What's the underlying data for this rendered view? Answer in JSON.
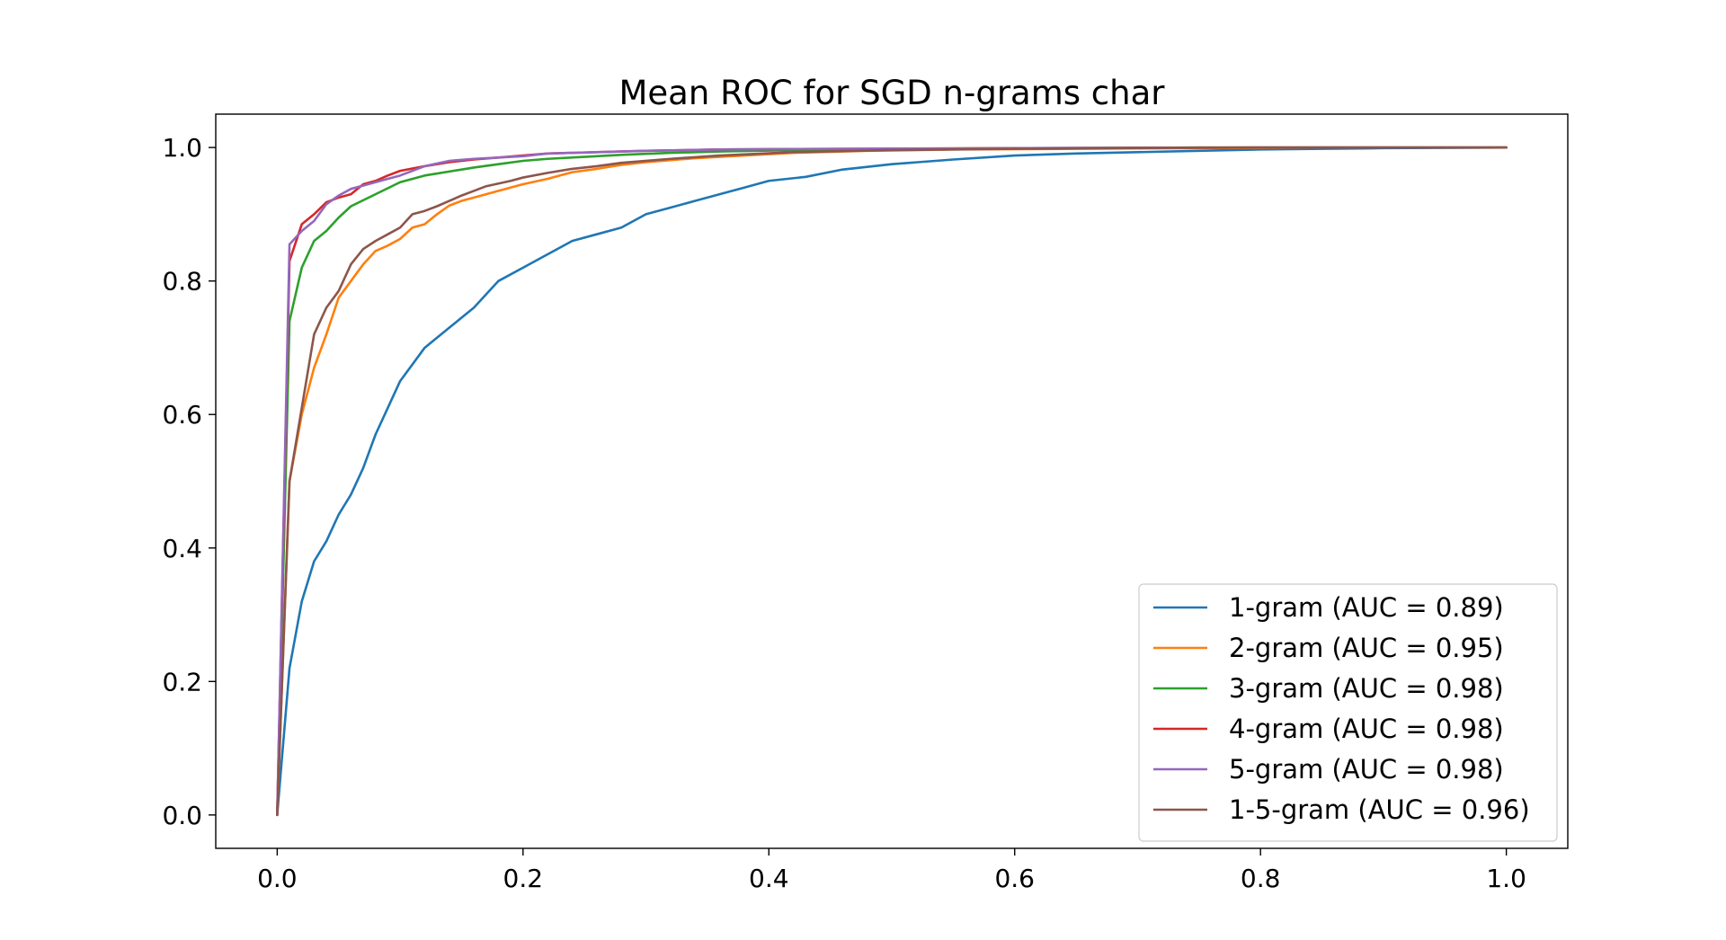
{
  "chart_data": {
    "type": "line",
    "title": "Mean ROC for SGD n-grams char",
    "xlabel": "",
    "ylabel": "",
    "xlim": [
      -0.05,
      1.05
    ],
    "ylim": [
      -0.05,
      1.05
    ],
    "xticks": [
      "0.0",
      "0.2",
      "0.4",
      "0.6",
      "0.8",
      "1.0"
    ],
    "yticks": [
      "0.0",
      "0.2",
      "0.4",
      "0.6",
      "0.8",
      "1.0"
    ],
    "grid": false,
    "legend_position": "lower-right",
    "series": [
      {
        "name": "1-gram (AUC = 0.89)",
        "color": "#1f77b4",
        "x": [
          0,
          0.01,
          0.02,
          0.03,
          0.04,
          0.05,
          0.06,
          0.07,
          0.08,
          0.09,
          0.1,
          0.12,
          0.14,
          0.16,
          0.18,
          0.2,
          0.22,
          0.24,
          0.26,
          0.28,
          0.3,
          0.32,
          0.34,
          0.36,
          0.38,
          0.4,
          0.43,
          0.46,
          0.5,
          0.55,
          0.6,
          0.65,
          0.7,
          0.75,
          0.8,
          0.85,
          0.9,
          1.0
        ],
        "y": [
          0,
          0.22,
          0.32,
          0.38,
          0.41,
          0.45,
          0.48,
          0.52,
          0.57,
          0.61,
          0.65,
          0.7,
          0.73,
          0.76,
          0.8,
          0.82,
          0.84,
          0.86,
          0.87,
          0.88,
          0.9,
          0.91,
          0.92,
          0.93,
          0.94,
          0.95,
          0.956,
          0.967,
          0.975,
          0.982,
          0.988,
          0.991,
          0.993,
          0.995,
          0.997,
          0.998,
          0.999,
          1.0
        ]
      },
      {
        "name": "2-gram (AUC = 0.95)",
        "color": "#ff7f0e",
        "x": [
          0,
          0.01,
          0.02,
          0.03,
          0.04,
          0.05,
          0.06,
          0.07,
          0.08,
          0.09,
          0.1,
          0.11,
          0.12,
          0.13,
          0.14,
          0.15,
          0.16,
          0.18,
          0.2,
          0.22,
          0.24,
          0.26,
          0.28,
          0.3,
          0.34,
          0.38,
          0.42,
          0.48,
          0.55,
          0.65,
          0.75,
          0.85,
          1.0
        ],
        "y": [
          0,
          0.5,
          0.6,
          0.67,
          0.72,
          0.775,
          0.8,
          0.825,
          0.845,
          0.853,
          0.863,
          0.88,
          0.885,
          0.9,
          0.913,
          0.92,
          0.925,
          0.935,
          0.945,
          0.953,
          0.963,
          0.968,
          0.974,
          0.978,
          0.984,
          0.988,
          0.992,
          0.995,
          0.997,
          0.998,
          0.999,
          1.0,
          1.0
        ]
      },
      {
        "name": "3-gram (AUC = 0.98)",
        "color": "#2ca02c",
        "x": [
          0,
          0.01,
          0.02,
          0.03,
          0.04,
          0.05,
          0.06,
          0.08,
          0.1,
          0.12,
          0.14,
          0.16,
          0.18,
          0.2,
          0.22,
          0.25,
          0.28,
          0.32,
          0.36,
          0.42,
          0.5,
          0.6,
          0.75,
          1.0
        ],
        "y": [
          0,
          0.74,
          0.82,
          0.86,
          0.875,
          0.895,
          0.912,
          0.93,
          0.948,
          0.958,
          0.964,
          0.97,
          0.975,
          0.98,
          0.983,
          0.986,
          0.989,
          0.992,
          0.994,
          0.996,
          0.998,
          0.999,
          1.0,
          1.0
        ]
      },
      {
        "name": "4-gram (AUC = 0.98)",
        "color": "#d62728",
        "x": [
          0,
          0.01,
          0.02,
          0.03,
          0.04,
          0.05,
          0.06,
          0.07,
          0.08,
          0.09,
          0.1,
          0.12,
          0.14,
          0.16,
          0.18,
          0.2,
          0.22,
          0.26,
          0.3,
          0.36,
          0.45,
          0.6,
          0.8,
          1.0
        ],
        "y": [
          0,
          0.83,
          0.885,
          0.9,
          0.918,
          0.925,
          0.93,
          0.945,
          0.95,
          0.958,
          0.965,
          0.972,
          0.978,
          0.982,
          0.985,
          0.988,
          0.991,
          0.993,
          0.995,
          0.997,
          0.998,
          0.999,
          1.0,
          1.0
        ]
      },
      {
        "name": "5-gram (AUC = 0.98)",
        "color": "#9467bd",
        "x": [
          0,
          0.01,
          0.02,
          0.03,
          0.04,
          0.05,
          0.06,
          0.07,
          0.08,
          0.09,
          0.1,
          0.12,
          0.14,
          0.16,
          0.18,
          0.2,
          0.22,
          0.26,
          0.3,
          0.36,
          0.45,
          0.6,
          0.8,
          1.0
        ],
        "y": [
          0,
          0.855,
          0.875,
          0.89,
          0.915,
          0.928,
          0.938,
          0.943,
          0.948,
          0.953,
          0.958,
          0.972,
          0.98,
          0.983,
          0.985,
          0.987,
          0.991,
          0.993,
          0.995,
          0.997,
          0.998,
          0.999,
          1.0,
          1.0
        ]
      },
      {
        "name": "1-5-gram (AUC = 0.96)",
        "color": "#8c564b",
        "x": [
          0,
          0.01,
          0.02,
          0.03,
          0.04,
          0.05,
          0.06,
          0.07,
          0.08,
          0.09,
          0.1,
          0.11,
          0.12,
          0.13,
          0.14,
          0.15,
          0.16,
          0.17,
          0.18,
          0.19,
          0.2,
          0.22,
          0.24,
          0.26,
          0.28,
          0.32,
          0.36,
          0.42,
          0.5,
          0.6,
          0.75,
          1.0
        ],
        "y": [
          0,
          0.5,
          0.61,
          0.72,
          0.76,
          0.785,
          0.825,
          0.848,
          0.86,
          0.87,
          0.88,
          0.9,
          0.905,
          0.912,
          0.92,
          0.928,
          0.935,
          0.942,
          0.946,
          0.95,
          0.955,
          0.962,
          0.968,
          0.972,
          0.977,
          0.983,
          0.988,
          0.993,
          0.996,
          0.998,
          1.0,
          1.0
        ]
      }
    ]
  }
}
